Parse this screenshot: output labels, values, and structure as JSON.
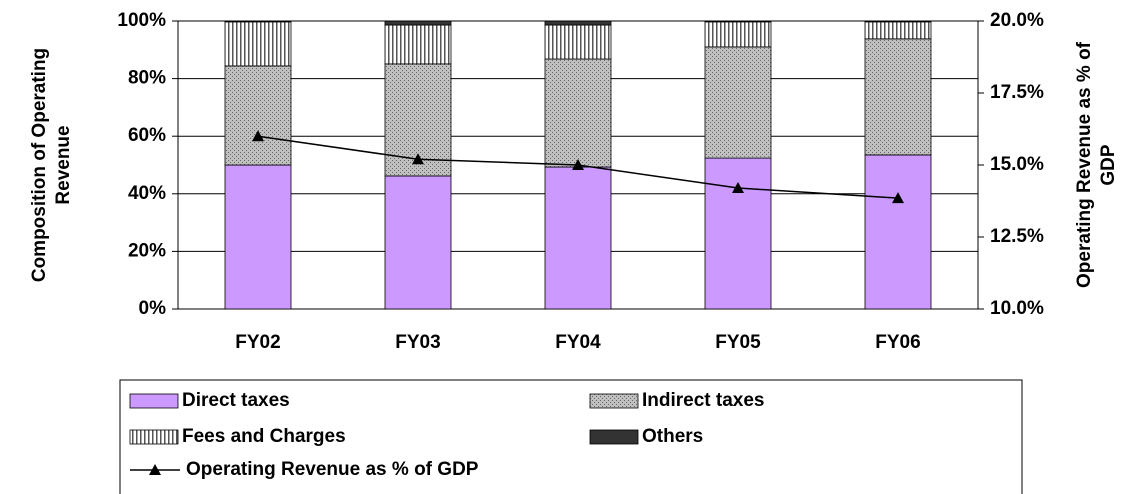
{
  "chart_data": {
    "type": "bar",
    "stacked": true,
    "categories": [
      "FY02",
      "FY03",
      "FY04",
      "FY05",
      "FY06"
    ],
    "ylabel": [
      "Composition of Operating",
      "Revenue"
    ],
    "y2label": [
      "Operating Revenue as % of",
      "GDP"
    ],
    "ylim": [
      0,
      100
    ],
    "yticks": [
      {
        "value": 0,
        "label": "0%"
      },
      {
        "value": 20,
        "label": "20%"
      },
      {
        "value": 40,
        "label": "40%"
      },
      {
        "value": 60,
        "label": "60%"
      },
      {
        "value": 80,
        "label": "80%"
      },
      {
        "value": 100,
        "label": "100%"
      }
    ],
    "y2lim": [
      10,
      20
    ],
    "y2ticks": [
      {
        "value": 10,
        "label": "10.0%"
      },
      {
        "value": 12.5,
        "label": "12.5%"
      },
      {
        "value": 15,
        "label": "15.0%"
      },
      {
        "value": 17.5,
        "label": "17.5%"
      },
      {
        "value": 20,
        "label": "20.0%"
      }
    ],
    "grid": true,
    "legend": "bottom",
    "series": [
      {
        "name": "Direct taxes",
        "color": "#cc99ff",
        "pattern": "solid",
        "values": [
          50.0,
          46.2,
          49.3,
          52.4,
          53.5
        ]
      },
      {
        "name": "Indirect taxes",
        "color": "#c0c0c0",
        "pattern": "dots",
        "values": [
          34.4,
          38.9,
          37.5,
          38.6,
          40.3
        ]
      },
      {
        "name": "Fees and Charges",
        "color": "#ffffff",
        "pattern": "vertical-stripes",
        "values": [
          15.3,
          13.5,
          11.8,
          8.7,
          5.9
        ]
      },
      {
        "name": "Others",
        "color": "#333333",
        "pattern": "solid",
        "values": [
          0.3,
          1.4,
          1.4,
          0.3,
          0.3
        ]
      },
      {
        "name": "Operating Revenue as % of GDP",
        "type": "line",
        "axis": "y2",
        "color": "#000000",
        "marker": "triangle",
        "values": [
          16.0,
          15.2,
          15.0,
          14.2,
          13.85
        ]
      }
    ]
  }
}
